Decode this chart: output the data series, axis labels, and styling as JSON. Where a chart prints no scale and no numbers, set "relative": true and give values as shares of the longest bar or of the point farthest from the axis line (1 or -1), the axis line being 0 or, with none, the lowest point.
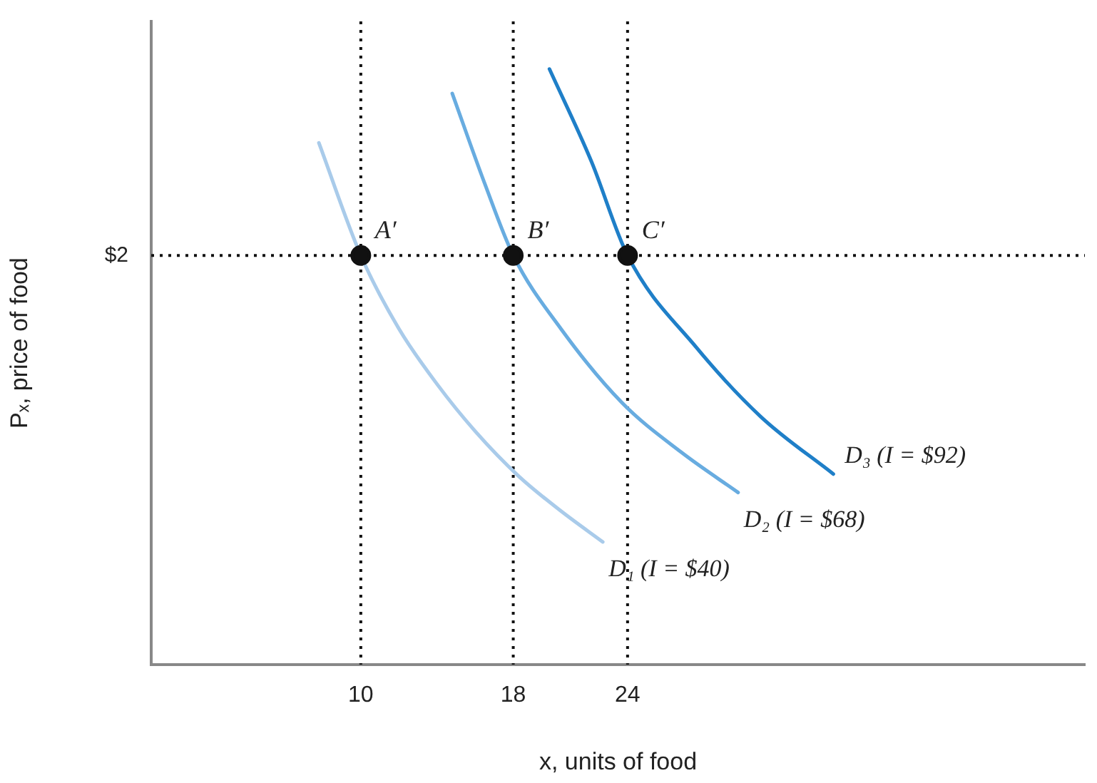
{
  "chart_data": {
    "type": "line",
    "xlabel": "x, units of food",
    "ylabel": "Pₓ, price of food",
    "xlim": [
      -1,
      48
    ],
    "xticks": [
      10,
      18,
      24
    ],
    "relative": true,
    "grid": false,
    "legend": false,
    "series": [
      {
        "name": "D₁ (I = $40)",
        "type": "line",
        "marker": "none",
        "color": "#a9cbea",
        "x": [
          7.8,
          10,
          12,
          14,
          16,
          18.3,
          20.5,
          22.7
        ],
        "values": [
          0.876,
          0.687,
          0.564,
          0.471,
          0.392,
          0.316,
          0.258,
          0.206
        ]
      },
      {
        "name": "D₂ (I = $68)",
        "type": "line",
        "marker": "none",
        "color": "#68ace0",
        "x": [
          14.8,
          16.5,
          18,
          20.5,
          23.7,
          26.8,
          29.8
        ],
        "values": [
          0.959,
          0.808,
          0.687,
          0.564,
          0.44,
          0.357,
          0.289
        ]
      },
      {
        "name": "D₃ (I = $92)",
        "type": "line",
        "marker": "none",
        "color": "#1f7fc8",
        "x": [
          19.9,
          22.1,
          24,
          27.6,
          31,
          34.8
        ],
        "values": [
          1,
          0.845,
          0.687,
          0.533,
          0.416,
          0.32
        ]
      },
      {
        "type": "scatter",
        "marker": "circle",
        "color": "#111111",
        "x": [
          10,
          18,
          24
        ],
        "values": [
          0.687,
          0.687,
          0.687
        ]
      }
    ],
    "ref_lines": [
      {
        "axis": "x",
        "value": 10,
        "line_style": "dotted",
        "color": "#111111"
      },
      {
        "axis": "x",
        "value": 18,
        "line_style": "dotted",
        "color": "#111111"
      },
      {
        "axis": "x",
        "value": 24,
        "line_style": "dotted",
        "color": "#111111"
      },
      {
        "axis": "y",
        "value": 0.687,
        "line_style": "dotted",
        "color": "#111111"
      }
    ],
    "annotations": [
      "$2",
      {
        "text": "A′",
        "x": 10,
        "y": 0.687
      },
      {
        "text": "B′",
        "x": 18,
        "y": 0.687
      },
      {
        "text": "C′",
        "x": 24,
        "y": 0.687
      }
    ]
  }
}
